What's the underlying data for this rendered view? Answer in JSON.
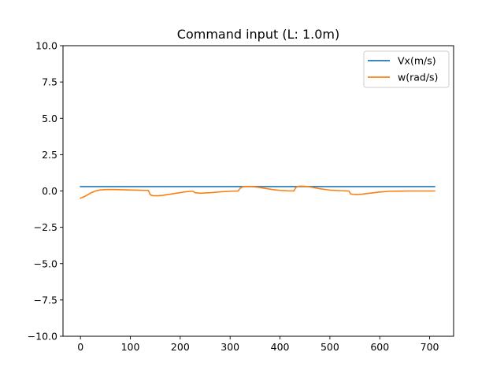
{
  "chart_data": {
    "type": "line",
    "title": "Command input (L: 1.0m)",
    "xlabel": "",
    "ylabel": "",
    "xlim": [
      -35,
      748
    ],
    "ylim": [
      -10,
      10
    ],
    "xticks": [
      0,
      100,
      200,
      300,
      400,
      500,
      600,
      700
    ],
    "yticks": [
      -10.0,
      -7.5,
      -5.0,
      -2.5,
      0.0,
      2.5,
      5.0,
      7.5,
      10.0
    ],
    "ytick_labels": [
      "−10.0",
      "−7.5",
      "−5.0",
      "−2.5",
      "0.0",
      "2.5",
      "5.0",
      "7.5",
      "10.0"
    ],
    "grid": false,
    "legend_position": "top-right",
    "series": [
      {
        "name": "Vx(m/s)",
        "color": "#1f77b4",
        "x": [
          0,
          710
        ],
        "y": [
          0.3,
          0.3
        ]
      },
      {
        "name": "w(rad/s)",
        "color": "#ff7f0e",
        "x": [
          0,
          10,
          20,
          30,
          40,
          50,
          70,
          90,
          110,
          130,
          136,
          139,
          141,
          145,
          155,
          165,
          180,
          195,
          210,
          222,
          225,
          230,
          240,
          260,
          280,
          300,
          316,
          320,
          325,
          330,
          340,
          355,
          370,
          385,
          400,
          415,
          428,
          431,
          435,
          440,
          450,
          465,
          480,
          500,
          520,
          538,
          541,
          545,
          555,
          565,
          580,
          600,
          620,
          640,
          660,
          680,
          710
        ],
        "y": [
          -0.5,
          -0.35,
          -0.15,
          0.0,
          0.07,
          0.1,
          0.1,
          0.08,
          0.06,
          0.04,
          0.04,
          -0.2,
          -0.28,
          -0.32,
          -0.33,
          -0.3,
          -0.22,
          -0.14,
          -0.06,
          -0.02,
          -0.02,
          -0.12,
          -0.15,
          -0.12,
          -0.06,
          -0.02,
          0.0,
          0.18,
          0.28,
          0.31,
          0.31,
          0.26,
          0.18,
          0.1,
          0.04,
          0.01,
          0.0,
          0.2,
          0.31,
          0.33,
          0.32,
          0.25,
          0.15,
          0.06,
          0.02,
          0.0,
          -0.18,
          -0.23,
          -0.25,
          -0.22,
          -0.15,
          -0.07,
          -0.02,
          -0.01,
          0.0,
          0.0,
          0.0
        ]
      }
    ]
  }
}
